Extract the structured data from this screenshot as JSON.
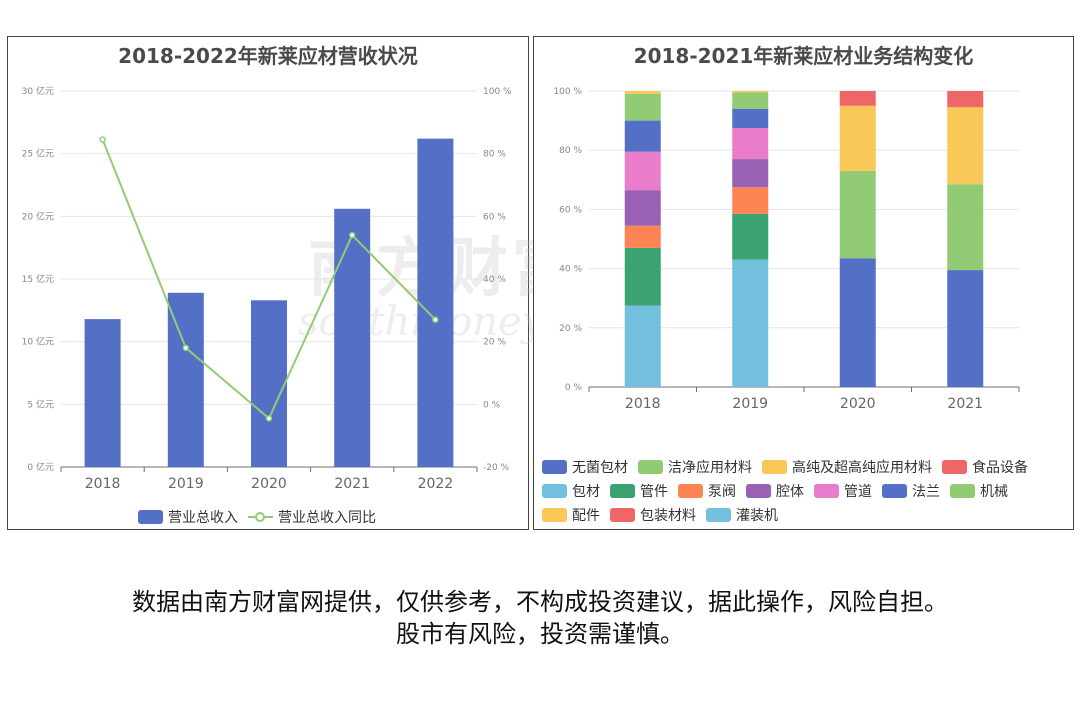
{
  "chart_data": [
    {
      "type": "bar+line",
      "title": "2018-2022年新莱应材营收状况",
      "categories": [
        "2018",
        "2019",
        "2020",
        "2021",
        "2022"
      ],
      "series": [
        {
          "name": "营业总收入",
          "type": "bar",
          "axis": "left",
          "color": "#5470c6",
          "values": [
            11.8,
            13.9,
            13.3,
            20.6,
            26.2
          ]
        },
        {
          "name": "营业总收入同比",
          "type": "line",
          "axis": "right",
          "color": "#91cc75",
          "values": [
            84.5,
            18.0,
            -4.5,
            54.0,
            27.0
          ]
        }
      ],
      "y_left": {
        "min": 0,
        "max": 30,
        "ticks": [
          0,
          5,
          10,
          15,
          20,
          25,
          30
        ],
        "suffix": " 亿元"
      },
      "y_right": {
        "min": -20,
        "max": 100,
        "ticks": [
          -20,
          0,
          20,
          40,
          60,
          80,
          100
        ],
        "suffix": " %"
      },
      "grid": true,
      "legend": "bottom-center"
    },
    {
      "type": "stacked-bar",
      "title": "2018-2021年新莱应材业务结构变化",
      "categories": [
        "2018",
        "2019",
        "2020",
        "2021"
      ],
      "y": {
        "min": 0,
        "max": 100,
        "ticks": [
          0,
          20,
          40,
          60,
          80,
          100
        ],
        "suffix": " %"
      },
      "grid": true,
      "legend": "bottom",
      "series": [
        {
          "name": "无菌包材",
          "color": "#5470c6",
          "values": [
            0,
            0,
            0,
            0
          ]
        },
        {
          "name": "洁净应用材料",
          "color": "#91cc75",
          "values": [
            0,
            0,
            0,
            0
          ]
        },
        {
          "name": "高纯及超高纯应用材料",
          "color": "#fac858",
          "values": [
            0,
            0,
            0,
            0
          ]
        },
        {
          "name": "食品设备",
          "color": "#ee6666",
          "values": [
            0,
            0,
            0,
            0
          ]
        },
        {
          "name": "包材",
          "color": "#73c0de",
          "values": [
            27.5,
            43,
            0,
            0
          ]
        },
        {
          "name": "管件",
          "color": "#3ba272",
          "values": [
            19.5,
            15.5,
            0,
            0
          ]
        },
        {
          "name": "泵阀",
          "color": "#fc8452",
          "values": [
            7.5,
            9,
            0,
            0
          ]
        },
        {
          "name": "腔体",
          "color": "#9a60b4",
          "values": [
            12,
            9.5,
            0,
            0
          ]
        },
        {
          "name": "管道",
          "color": "#ea7ccc",
          "values": [
            13,
            10.5,
            0,
            0
          ]
        },
        {
          "name": "法兰",
          "color": "#5470c6",
          "values": [
            10.5,
            6.5,
            43.5,
            39.5
          ]
        },
        {
          "name": "机械",
          "color": "#91cc75",
          "values": [
            9,
            5.5,
            29.5,
            29
          ]
        },
        {
          "name": "配件",
          "color": "#fac858",
          "values": [
            1,
            0.5,
            22,
            26
          ]
        },
        {
          "name": "包装材料",
          "color": "#ee6666",
          "values": [
            0,
            0,
            5,
            5.5
          ]
        },
        {
          "name": "灌装机",
          "color": "#73c0de",
          "values": [
            0,
            0,
            0,
            0
          ]
        }
      ]
    }
  ],
  "watermark": {
    "cn": "南方财富网",
    "en": "southmoney.com"
  },
  "disclaimer": {
    "line1": "数据由南方财富网提供，仅供参考，不构成投资建议，据此操作，风险自担。",
    "line2": "股市有风险，投资需谨慎。"
  }
}
